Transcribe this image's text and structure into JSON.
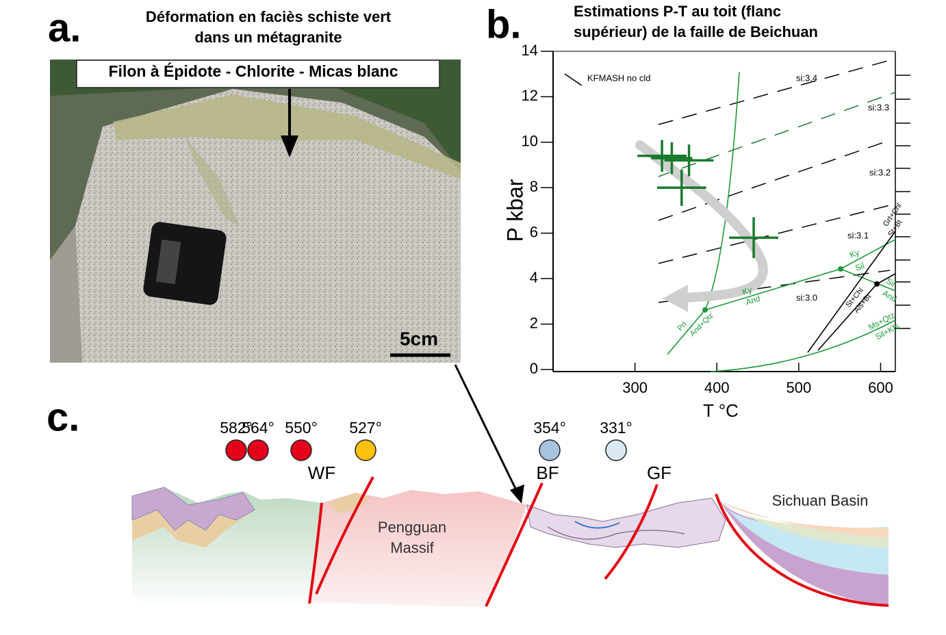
{
  "panel_a": {
    "label": "a.",
    "title": [
      "Déformation en faciès schiste vert",
      "dans un métagranite"
    ],
    "vein_label": "Filon à Épidote - Chlorite - Micas blanc",
    "scale_label": "5cm"
  },
  "chart_data": {
    "type": "scatter",
    "panel_label": "b.",
    "title": [
      "Estimations P-T au toit (flanc",
      "supérieur) de la faille de Beichuan"
    ],
    "x_label": "T °C",
    "y_label": "P kbar",
    "xlim": [
      200,
      618
    ],
    "ylim": [
      0,
      14
    ],
    "xticks": [
      300,
      400,
      500,
      600
    ],
    "yticks": [
      0,
      2,
      4,
      6,
      8,
      10,
      12,
      14
    ],
    "series": [
      {
        "color": "#1a7a2e",
        "x": [
          333,
          345,
          366,
          357,
          445
        ],
        "values": [
          9.4,
          9.3,
          9.2,
          8.0,
          5.8
        ],
        "x_errors": [
          30,
          25,
          30,
          30,
          30
        ],
        "y_errors": [
          0.7,
          0.7,
          0.7,
          0.8,
          0.9
        ]
      }
    ],
    "annotations": [
      "KFMASH no cld",
      "si:3.4",
      "si:3.3",
      "si:3.2",
      "si:3.1",
      "si:3.0",
      "Ky",
      "Sil",
      "Sil",
      "And",
      "Ky",
      "And",
      "Prl",
      "And+Qtz",
      "Grt+Chl",
      "St+Bt",
      "St+Chl",
      "Als+Bt",
      "Ms+Qtz",
      "Sil+Kfs"
    ]
  },
  "panel_c": {
    "label": "c.",
    "samples": [
      {
        "temperature": "582°",
        "color": "#e2001a"
      },
      {
        "temperature": "564°",
        "color": "#e2001a"
      },
      {
        "temperature": "550°",
        "color": "#e2001a"
      },
      {
        "temperature": "527°",
        "color": "#fcc10f"
      },
      {
        "temperature": "354°",
        "color": "#a8c3df"
      },
      {
        "temperature": "331°",
        "color": "#dbe9f5"
      }
    ],
    "faults": [
      "WF",
      "BF",
      "GF"
    ],
    "massif": [
      "Pengguan",
      "Massif"
    ],
    "basin": "Sichuan Basin"
  }
}
